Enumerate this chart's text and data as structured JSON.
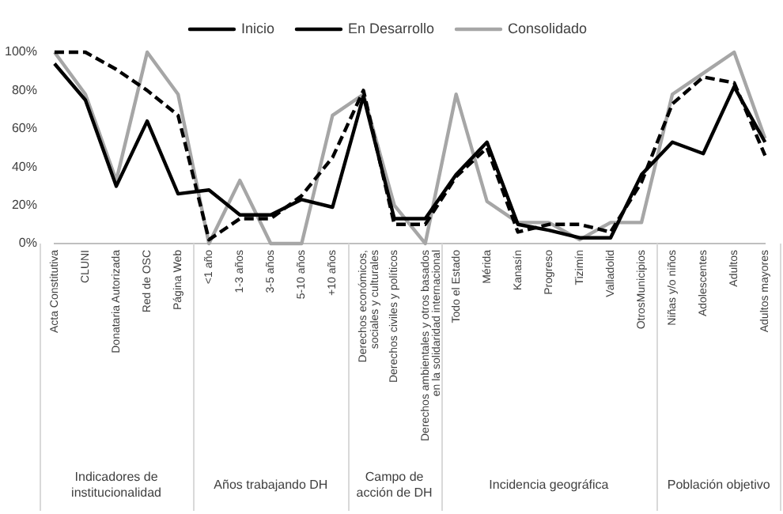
{
  "chart_data": {
    "type": "line",
    "categories": [
      "Acta Constitutiva",
      "CLUNI",
      "Donataria Autorizada",
      "Red de OSC",
      "Página Web",
      "<1 año",
      "1-3 años",
      "3-5 años",
      "5-10 años",
      "+10 años",
      "Derechos económicos, sociales y culturales",
      "Derechos civiles y políticos",
      "Derechos ambientales y otros basados en la solidaridad internacional",
      "Todo el Estado",
      "Mérida",
      "Kanasín",
      "Progreso",
      "Tizimín",
      "Valladolid",
      "OtrosMunicipios",
      "Niñas y/o niños",
      "Adolescentes",
      "Adultos",
      "Adultos mayores"
    ],
    "series": [
      {
        "name": "Inicio",
        "color": "#000000",
        "line_style": "solid",
        "values": [
          94,
          75,
          30,
          64,
          26,
          28,
          15,
          15,
          23,
          19,
          77,
          13,
          13,
          36,
          53,
          10,
          7,
          3,
          3,
          36,
          53,
          47,
          82,
          53
        ]
      },
      {
        "name": "En Desarrollo",
        "color": "#000000",
        "line_style": "dashed",
        "values": [
          100,
          100,
          91,
          80,
          67,
          2,
          13,
          13,
          25,
          45,
          80,
          10,
          10,
          35,
          50,
          6,
          10,
          10,
          6,
          32,
          73,
          87,
          84,
          46
        ]
      },
      {
        "name": "Consolidado",
        "color": "#a6a6a6",
        "line_style": "solid",
        "values": [
          100,
          78,
          33,
          100,
          78,
          0,
          33,
          0,
          0,
          67,
          78,
          20,
          0,
          78,
          22,
          11,
          11,
          2,
          11,
          11,
          78,
          89,
          100,
          55
        ]
      }
    ],
    "ylim": [
      0,
      100
    ],
    "yticks": [
      {
        "value": 0,
        "label": "0%"
      },
      {
        "value": 20,
        "label": "20%"
      },
      {
        "value": 40,
        "label": "40%"
      },
      {
        "value": 60,
        "label": "60%"
      },
      {
        "value": 80,
        "label": "80%"
      },
      {
        "value": 100,
        "label": "100%"
      }
    ],
    "grid": false,
    "legend": "top",
    "marker": "none",
    "annotations": [
      "Indicadores de institucionalidad",
      "Años trabajando DH",
      "Campo de acción de DH",
      "Incidencia geográfica",
      "Población objetivo"
    ]
  }
}
